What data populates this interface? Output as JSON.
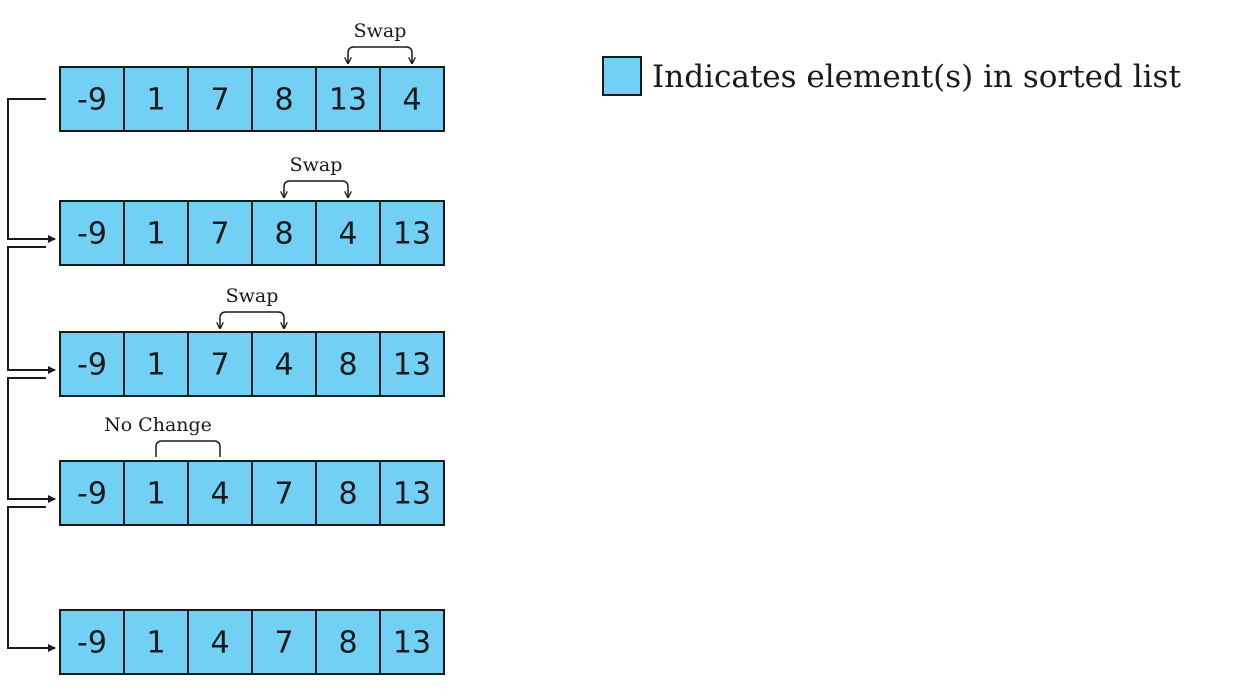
{
  "rows": [
    {
      "cells": [
        -9,
        1,
        7,
        8,
        13,
        4
      ],
      "annotation": "Swap"
    },
    {
      "cells": [
        -9,
        1,
        7,
        8,
        4,
        13
      ],
      "annotation": "Swap"
    },
    {
      "cells": [
        -9,
        1,
        7,
        4,
        8,
        13
      ],
      "annotation": "Swap"
    },
    {
      "cells": [
        -9,
        1,
        4,
        7,
        8,
        13
      ],
      "annotation": "No Change"
    },
    {
      "cells": [
        -9,
        1,
        4,
        7,
        8,
        13
      ]
    }
  ],
  "legend": {
    "label": "Indicates element(s) in sorted list"
  }
}
